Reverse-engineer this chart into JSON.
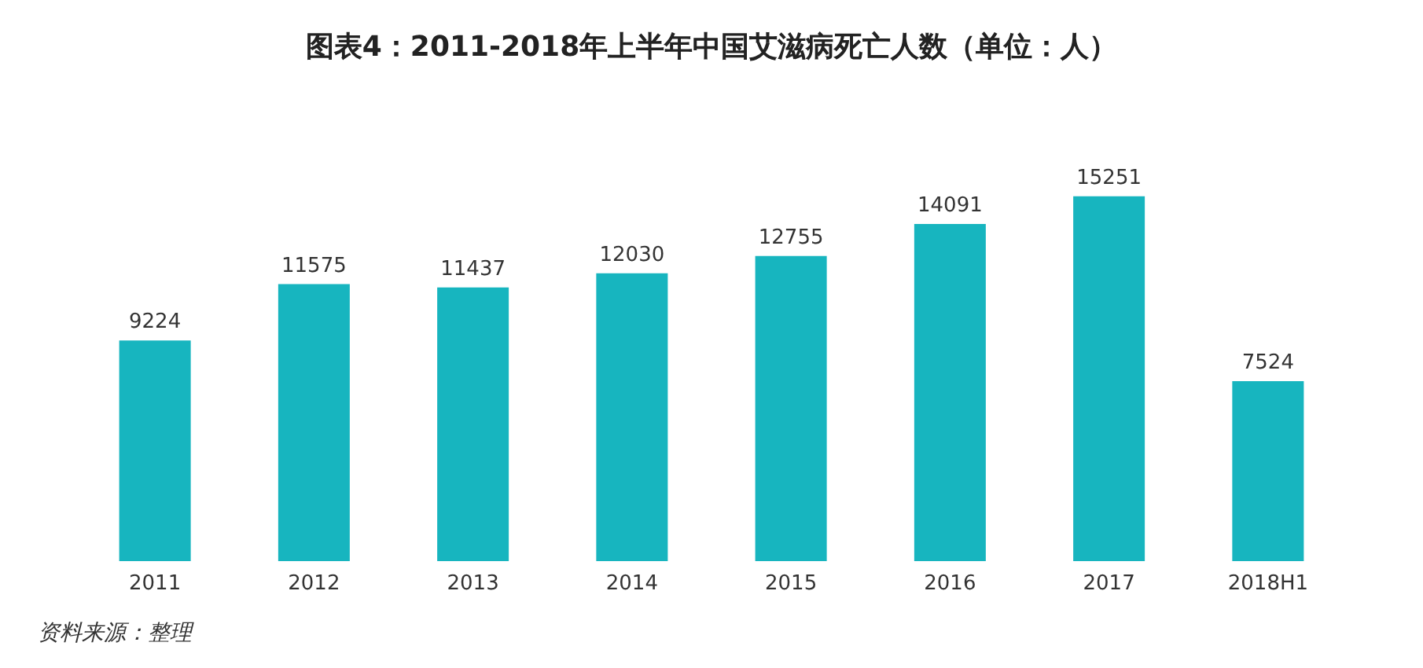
{
  "chart_data": {
    "type": "bar",
    "title": "图表4：2011-2018年上半年中国艾滋病死亡人数（单位：人）",
    "categories": [
      "2011",
      "2012",
      "2013",
      "2014",
      "2015",
      "2016",
      "2017",
      "2018H1"
    ],
    "values": [
      9224,
      11575,
      11437,
      12030,
      12755,
      14091,
      15251,
      7524
    ],
    "color": "#17b5bf",
    "data_labels": true,
    "annotations": [
      "资料来源：整理"
    ]
  }
}
